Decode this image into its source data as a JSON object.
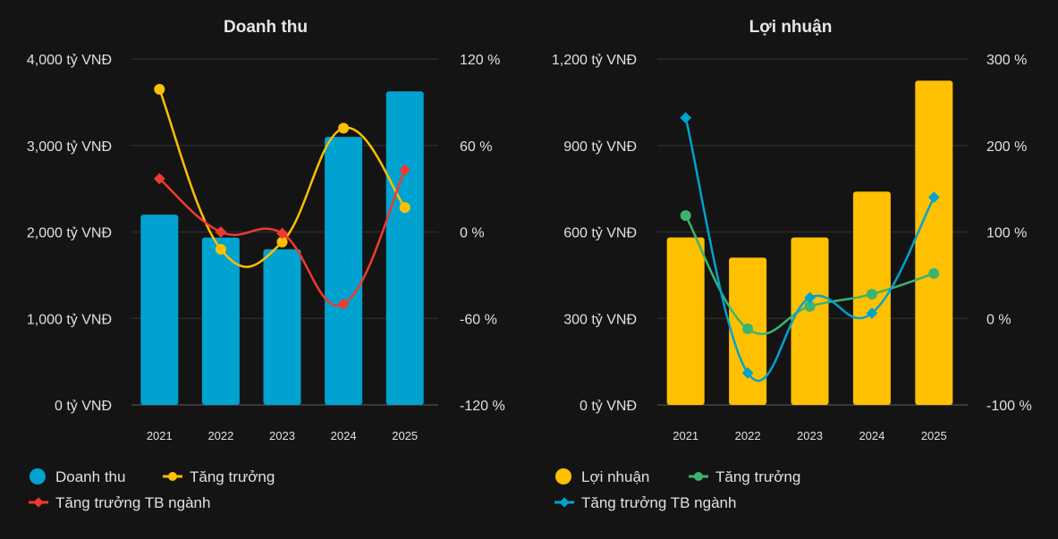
{
  "chart_data": [
    {
      "type": "bar",
      "title": "Doanh thu",
      "categories": [
        "2021",
        "2022",
        "2023",
        "2024",
        "2025"
      ],
      "y_left": {
        "ticks": [
          "0 tỷ VNĐ",
          "1,000 tỷ VNĐ",
          "2,000 tỷ VNĐ",
          "3,000 tỷ VNĐ",
          "4,000 tỷ VNĐ"
        ],
        "range": [
          0,
          4000
        ]
      },
      "y_right": {
        "ticks": [
          "-120 %",
          "-60 %",
          "0 %",
          "60 %",
          "120 %"
        ],
        "range": [
          -120,
          120
        ]
      },
      "grid": true,
      "legend_position": "bottom-left",
      "series": [
        {
          "name": "Doanh thu",
          "kind": "bar",
          "axis": "left",
          "color": "#00a2d0",
          "values": [
            2200,
            1935,
            1800,
            3100,
            3625
          ]
        },
        {
          "name": "Tăng trưởng",
          "kind": "line",
          "marker": "circle",
          "axis": "right",
          "color": "#ffc000",
          "values": [
            99,
            -12,
            -7,
            72,
            17
          ]
        },
        {
          "name": "Tăng trưởng TB ngành",
          "kind": "line",
          "marker": "diamond",
          "axis": "right",
          "color": "#f03a2e",
          "values": [
            37,
            0,
            -1,
            -50,
            43
          ]
        }
      ]
    },
    {
      "type": "bar",
      "title": "Lợi nhuận",
      "categories": [
        "2021",
        "2022",
        "2023",
        "2024",
        "2025"
      ],
      "y_left": {
        "ticks": [
          "0 tỷ VNĐ",
          "300 tỷ VNĐ",
          "600 tỷ VNĐ",
          "900 tỷ VNĐ",
          "1,200 tỷ VNĐ"
        ],
        "range": [
          0,
          1200
        ]
      },
      "y_right": {
        "ticks": [
          "-100 %",
          "0 %",
          "100 %",
          "200 %",
          "300 %"
        ],
        "range": [
          -100,
          300
        ]
      },
      "grid": true,
      "legend_position": "bottom-left",
      "series": [
        {
          "name": "Lợi nhuận",
          "kind": "bar",
          "axis": "left",
          "color": "#ffc000",
          "values": [
            581,
            511,
            581,
            740,
            1125
          ]
        },
        {
          "name": "Tăng trưởng",
          "kind": "line",
          "marker": "circle",
          "axis": "right",
          "color": "#3cb371",
          "values": [
            119,
            -12,
            14,
            28,
            52
          ]
        },
        {
          "name": "Tăng trưởng TB ngành",
          "kind": "line",
          "marker": "diamond",
          "axis": "right",
          "color": "#00a2d0",
          "values": [
            232,
            -63,
            24,
            6,
            140
          ]
        }
      ]
    }
  ]
}
